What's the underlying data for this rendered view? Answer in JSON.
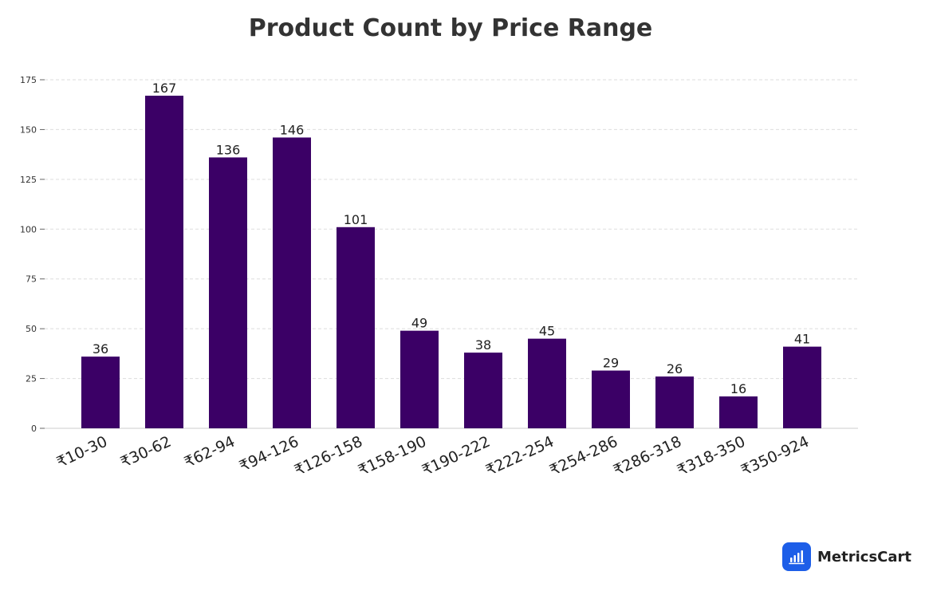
{
  "chart_data": {
    "type": "bar",
    "title": "Product Count by Price Range",
    "xlabel": "",
    "ylabel": "",
    "categories": [
      "₹10-30",
      "₹30-62",
      "₹62-94",
      "₹94-126",
      "₹126-158",
      "₹158-190",
      "₹190-222",
      "₹222-254",
      "₹254-286",
      "₹286-318",
      "₹318-350",
      "₹350-924"
    ],
    "values": [
      36,
      167,
      136,
      146,
      101,
      49,
      38,
      45,
      29,
      26,
      16,
      41
    ],
    "ylim": [
      0,
      175
    ],
    "yticks": [
      0,
      25,
      50,
      75,
      100,
      125,
      150,
      175
    ],
    "grid": true,
    "bar_color": "#3b0066",
    "data_labels": true
  },
  "branding": {
    "name": "MetricsCart",
    "logo_icon": "bar-chart-icon",
    "logo_color": "#1d5ee8"
  }
}
